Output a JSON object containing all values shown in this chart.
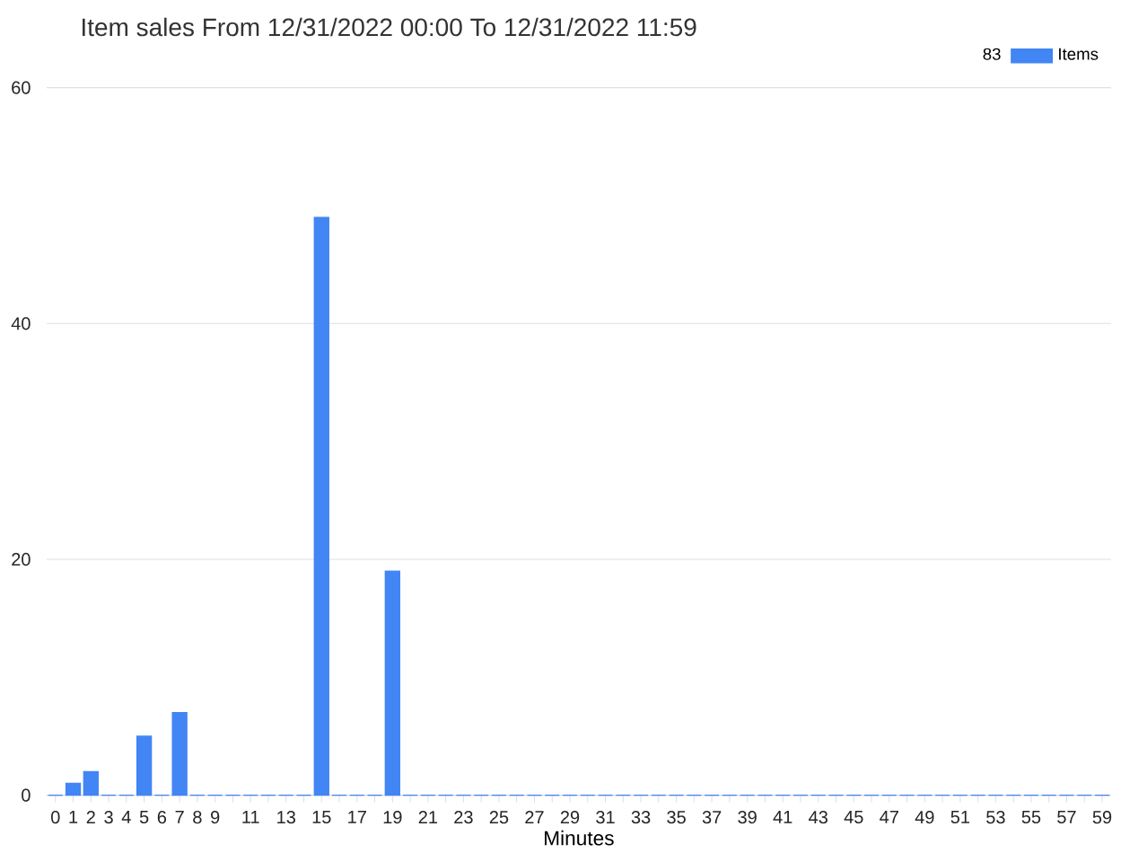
{
  "chart_data": {
    "type": "bar",
    "title": "Item sales From 12/31/2022 00:00 To 12/31/2022 11:59",
    "xlabel": "Minutes",
    "categories": [
      "0",
      "1",
      "2",
      "3",
      "4",
      "5",
      "6",
      "7",
      "8",
      "9",
      null,
      "11",
      null,
      "13",
      null,
      "15",
      null,
      "17",
      null,
      "19",
      null,
      "21",
      null,
      "23",
      null,
      "25",
      null,
      "27",
      null,
      "29",
      null,
      "31",
      null,
      "33",
      null,
      "35",
      null,
      "37",
      null,
      "39",
      null,
      "41",
      null,
      "43",
      null,
      "45",
      null,
      "47",
      null,
      "49",
      null,
      "51",
      null,
      "53",
      null,
      "55",
      null,
      "57",
      null,
      "59"
    ],
    "series": [
      {
        "name": "Items",
        "color": "#4285f4",
        "values": [
          0,
          1,
          2,
          0,
          0,
          5,
          0,
          7,
          0,
          0,
          0,
          0,
          0,
          0,
          0,
          49,
          0,
          0,
          0,
          19,
          0,
          0,
          0,
          0,
          0,
          0,
          0,
          0,
          0,
          0,
          0,
          0,
          0,
          0,
          0,
          0,
          0,
          0,
          0,
          0,
          0,
          0,
          0,
          0,
          0,
          0,
          0,
          0,
          0,
          0,
          0,
          0,
          0,
          0,
          0,
          0,
          0,
          0,
          0,
          0
        ]
      }
    ],
    "legend_title": "83",
    "legend": "top right",
    "ylim": [
      0,
      60
    ],
    "yticks": [
      0,
      20,
      40,
      60
    ],
    "grid": "y"
  }
}
